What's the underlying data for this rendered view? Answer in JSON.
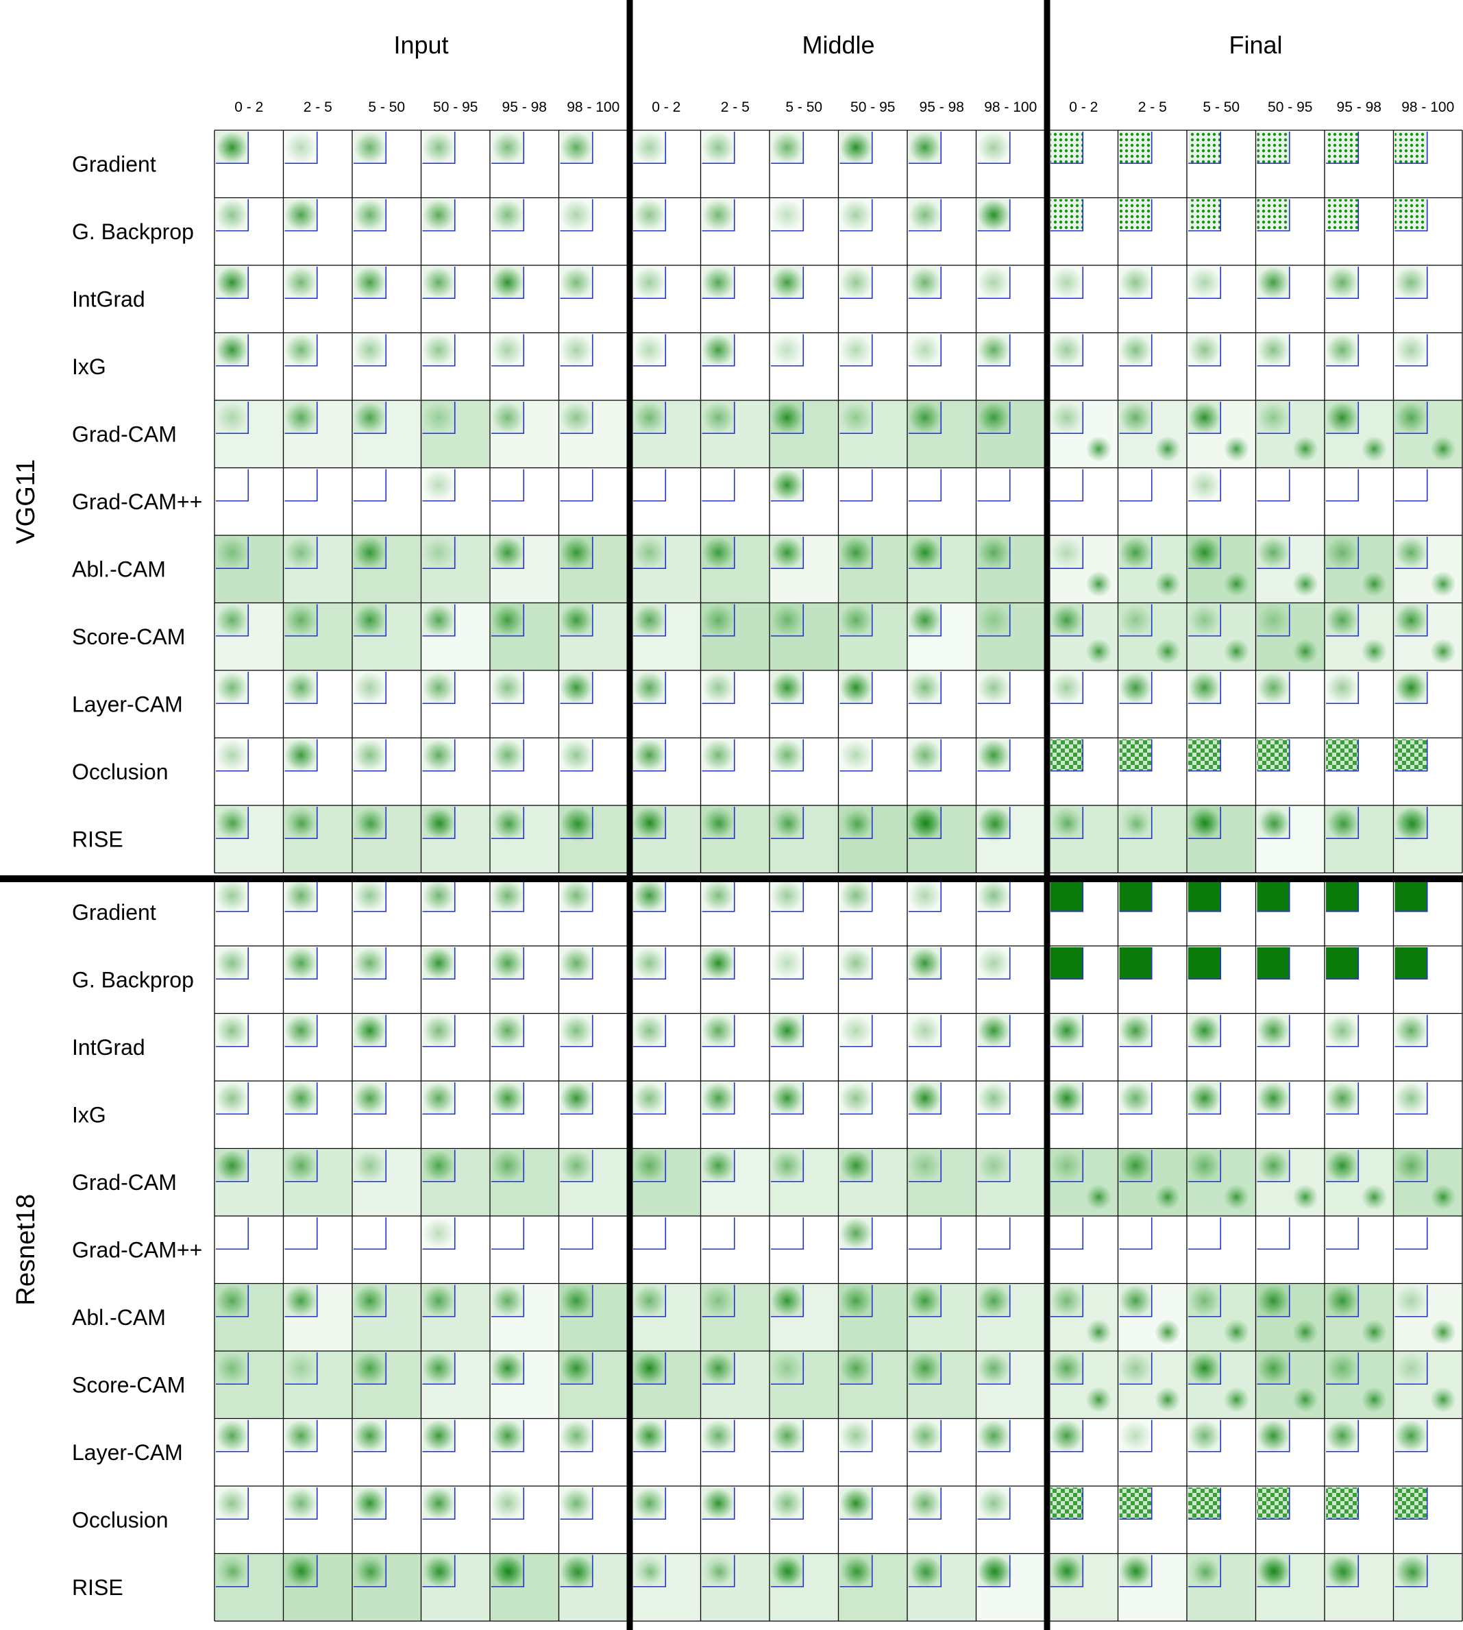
{
  "layers": [
    "Input",
    "Middle",
    "Final"
  ],
  "bins": [
    "0 - 2",
    "2 - 5",
    "5 - 50",
    "50 - 95",
    "95 - 98",
    "98 - 100"
  ],
  "models": [
    {
      "name": "VGG11",
      "methods": [
        "Gradient",
        "G. Backprop",
        "IntGrad",
        "IxG",
        "Grad-CAM",
        "Grad-CAM++",
        "Abl.-CAM",
        "Score-CAM",
        "Layer-CAM",
        "Occlusion",
        "RISE"
      ]
    },
    {
      "name": "Resnet18",
      "methods": [
        "Gradient",
        "G. Backprop",
        "IntGrad",
        "IxG",
        "Grad-CAM",
        "Grad-CAM++",
        "Abl.-CAM",
        "Score-CAM",
        "Layer-CAM",
        "Occlusion",
        "RISE"
      ]
    }
  ],
  "colors": {
    "attribution": "#0a7a0a",
    "frame": "#2233cc",
    "grid": "#000000"
  }
}
